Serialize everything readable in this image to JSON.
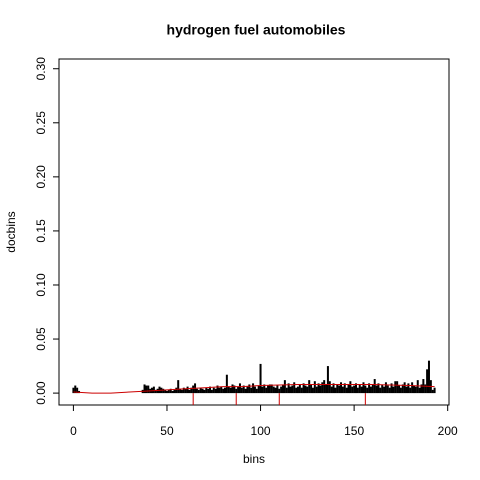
{
  "chart_data": {
    "type": "histogram-lines",
    "title": "hydrogen fuel automobiles",
    "xlabel": "bins",
    "ylabel": "docbins",
    "x": [
      0,
      1,
      2,
      3,
      4,
      5,
      6,
      7,
      8,
      9,
      10,
      11,
      12,
      13,
      14,
      15,
      16,
      17,
      18,
      19,
      20,
      21,
      22,
      23,
      24,
      25,
      26,
      27,
      28,
      29,
      30,
      31,
      32,
      33,
      34,
      35,
      36,
      37,
      38,
      39,
      40,
      41,
      42,
      43,
      44,
      45,
      46,
      47,
      48,
      49,
      50,
      51,
      52,
      53,
      54,
      55,
      56,
      57,
      58,
      59,
      60,
      61,
      62,
      63,
      64,
      65,
      66,
      67,
      68,
      69,
      70,
      71,
      72,
      73,
      74,
      75,
      76,
      77,
      78,
      79,
      80,
      81,
      82,
      83,
      84,
      85,
      86,
      87,
      88,
      89,
      90,
      91,
      92,
      93,
      94,
      95,
      96,
      97,
      98,
      99,
      100,
      101,
      102,
      103,
      104,
      105,
      106,
      107,
      108,
      109,
      110,
      111,
      112,
      113,
      114,
      115,
      116,
      117,
      118,
      119,
      120,
      121,
      122,
      123,
      124,
      125,
      126,
      127,
      128,
      129,
      130,
      131,
      132,
      133,
      134,
      135,
      136,
      137,
      138,
      139,
      140,
      141,
      142,
      143,
      144,
      145,
      146,
      147,
      148,
      149,
      150,
      151,
      152,
      153,
      154,
      155,
      156,
      157,
      158,
      159,
      160,
      161,
      162,
      163,
      164,
      165,
      166,
      167,
      168,
      169,
      170,
      171,
      172,
      173,
      174,
      175,
      176,
      177,
      178,
      179,
      180,
      181,
      182,
      183,
      184,
      185,
      186,
      187,
      188,
      189,
      190,
      191,
      192,
      193
    ],
    "values": [
      0.005,
      0.007,
      0.005,
      0.002,
      0,
      0,
      0,
      0,
      0,
      0,
      0,
      0,
      0,
      0,
      0,
      0,
      0,
      0,
      0,
      0,
      0,
      0,
      0,
      0,
      0,
      0,
      0,
      0,
      0,
      0,
      0,
      0,
      0,
      0,
      0,
      0,
      0,
      0.003,
      0.008,
      0.007,
      0.007,
      0.004,
      0.005,
      0.006,
      0.003,
      0.004,
      0.006,
      0.005,
      0.004,
      0.003,
      0.002,
      0.003,
      0.004,
      0.002,
      0.003,
      0.005,
      0.012,
      0.004,
      0.003,
      0.005,
      0.004,
      0.006,
      0.003,
      0.005,
      0.007,
      0.009,
      0.004,
      0.003,
      0.005,
      0.004,
      0.003,
      0.005,
      0.004,
      0.006,
      0.003,
      0.005,
      0.004,
      0.007,
      0.005,
      0.006,
      0.004,
      0.005,
      0.017,
      0.006,
      0.005,
      0.008,
      0.007,
      0.004,
      0.006,
      0.009,
      0.005,
      0.007,
      0.004,
      0.006,
      0.008,
      0.005,
      0.009,
      0.006,
      0.004,
      0.007,
      0.027,
      0.006,
      0.008,
      0.005,
      0.007,
      0.008,
      0.008,
      0.006,
      0.005,
      0.007,
      0.004,
      0.006,
      0.008,
      0.012,
      0.005,
      0.009,
      0.006,
      0.007,
      0.01,
      0.005,
      0.006,
      0.008,
      0.005,
      0.009,
      0.007,
      0.006,
      0.012,
      0.008,
      0.005,
      0.011,
      0.006,
      0.009,
      0.007,
      0.01,
      0.012,
      0.008,
      0.025,
      0.011,
      0.006,
      0.009,
      0.005,
      0.008,
      0.007,
      0.01,
      0.006,
      0.009,
      0.005,
      0.008,
      0.011,
      0.006,
      0.007,
      0.009,
      0.005,
      0.008,
      0.006,
      0.01,
      0.007,
      0.005,
      0.009,
      0.006,
      0.008,
      0.013,
      0.007,
      0.009,
      0.005,
      0.008,
      0.006,
      0.01,
      0.007,
      0.005,
      0.009,
      0.006,
      0.011,
      0.011,
      0.007,
      0.005,
      0.008,
      0.01,
      0.006,
      0.009,
      0.005,
      0.01,
      0.007,
      0.006,
      0.012,
      0.005,
      0.008,
      0.013,
      0.008,
      0.022,
      0.03,
      0.012,
      0.003,
      0.005
    ],
    "color": "#000000",
    "smooth": {
      "color": "#cc0000",
      "x": [
        0,
        10,
        20,
        30,
        40,
        50,
        60,
        70,
        80,
        90,
        100,
        120,
        140,
        160,
        180,
        193
      ],
      "values": [
        0.001,
        0,
        0,
        0.001,
        0.002,
        0.003,
        0.004,
        0.005,
        0.006,
        0.006,
        0.007,
        0.008,
        0.008,
        0.008,
        0.007,
        0.006
      ]
    },
    "x_markers": [
      64,
      87,
      110,
      156
    ],
    "xlim": [
      -7.7,
      200.7
    ],
    "ylim": [
      -0.011,
      0.309
    ],
    "xticks": [
      0,
      50,
      100,
      150,
      200
    ],
    "yticks": [
      {
        "value": 0,
        "label": "0.00"
      },
      {
        "value": 0.05,
        "label": "0.05"
      },
      {
        "value": 0.1,
        "label": "0.10"
      },
      {
        "value": 0.15,
        "label": "0.15"
      },
      {
        "value": 0.2,
        "label": "0.20"
      },
      {
        "value": 0.25,
        "label": "0.25"
      },
      {
        "value": 0.3,
        "label": "0.30"
      }
    ]
  }
}
